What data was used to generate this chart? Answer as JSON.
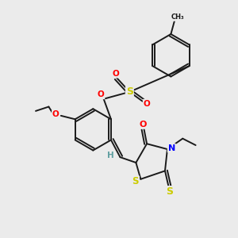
{
  "background_color": "#ebebeb",
  "figure_size": [
    3.0,
    3.0
  ],
  "dpi": 100,
  "bond_color": "#1a1a1a",
  "bond_width": 1.4,
  "atom_colors": {
    "O": "#ff0000",
    "S": "#cccc00",
    "N": "#0000ff",
    "H": "#5f9ea0",
    "C": "#1a1a1a"
  },
  "font_size": 7.5
}
